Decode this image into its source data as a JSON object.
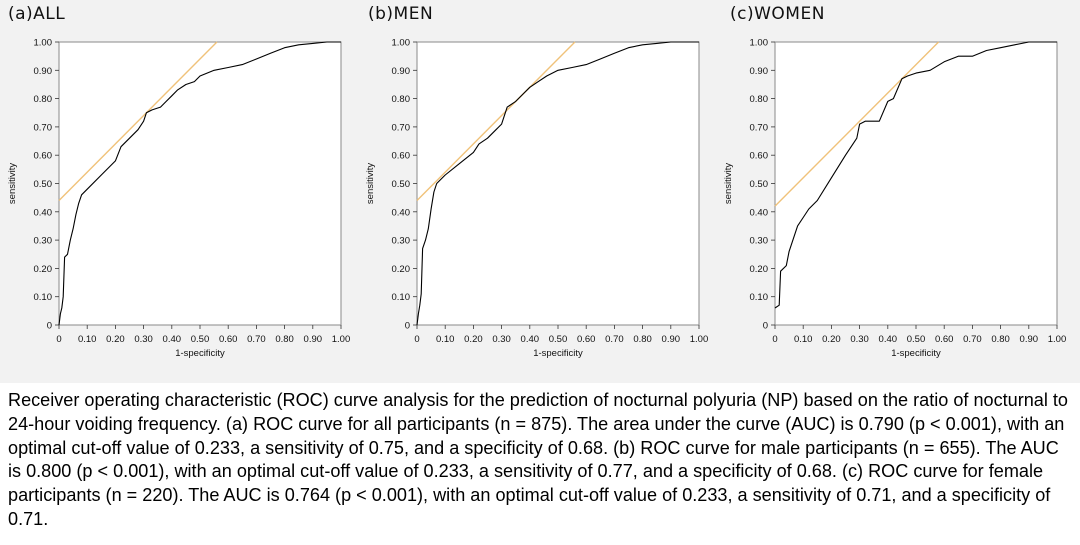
{
  "chart_data": [
    {
      "type": "line",
      "panel_label": "(a)ALL",
      "xlabel": "1-specificity",
      "ylabel": "sensitivity",
      "xlim": [
        0,
        1
      ],
      "ylim": [
        0,
        1
      ],
      "x_ticks": [
        "0",
        "0.10",
        "0.20",
        "0.30",
        "0.40",
        "0.50",
        "0.60",
        "0.70",
        "0.80",
        "0.90",
        "1.00"
      ],
      "y_ticks": [
        "0",
        "0.10",
        "0.20",
        "0.30",
        "0.40",
        "0.50",
        "0.60",
        "0.70",
        "0.80",
        "0.90",
        "1.00"
      ],
      "grid": false,
      "roc_curve": {
        "x": [
          0,
          0.005,
          0.01,
          0.015,
          0.02,
          0.03,
          0.04,
          0.05,
          0.06,
          0.07,
          0.08,
          0.1,
          0.15,
          0.2,
          0.22,
          0.25,
          0.28,
          0.3,
          0.31,
          0.33,
          0.36,
          0.38,
          0.4,
          0.42,
          0.45,
          0.48,
          0.5,
          0.55,
          0.6,
          0.65,
          0.7,
          0.75,
          0.8,
          0.85,
          0.9,
          0.95,
          1.0
        ],
        "y": [
          0,
          0.04,
          0.06,
          0.1,
          0.24,
          0.25,
          0.3,
          0.34,
          0.39,
          0.43,
          0.46,
          0.48,
          0.53,
          0.58,
          0.63,
          0.66,
          0.69,
          0.72,
          0.75,
          0.76,
          0.77,
          0.79,
          0.81,
          0.83,
          0.85,
          0.86,
          0.88,
          0.9,
          0.91,
          0.92,
          0.94,
          0.96,
          0.98,
          0.99,
          0.995,
          1.0,
          1.0
        ]
      },
      "tangent_line": {
        "x": [
          0,
          0.56
        ],
        "y": [
          0.44,
          1.0
        ],
        "color": "#f0c27a"
      },
      "curve_color": "#000000"
    },
    {
      "type": "line",
      "panel_label": "(b)MEN",
      "xlabel": "1-specificity",
      "ylabel": "sensitivity",
      "xlim": [
        0,
        1
      ],
      "ylim": [
        0,
        1
      ],
      "x_ticks": [
        "0",
        "0.10",
        "0.20",
        "0.30",
        "0.40",
        "0.50",
        "0.60",
        "0.70",
        "0.80",
        "0.90",
        "1.00"
      ],
      "y_ticks": [
        "0",
        "0.10",
        "0.20",
        "0.30",
        "0.40",
        "0.50",
        "0.60",
        "0.70",
        "0.80",
        "0.90",
        "1.00"
      ],
      "grid": false,
      "roc_curve": {
        "x": [
          0,
          0.005,
          0.01,
          0.015,
          0.02,
          0.03,
          0.04,
          0.05,
          0.06,
          0.07,
          0.1,
          0.15,
          0.2,
          0.22,
          0.25,
          0.28,
          0.3,
          0.32,
          0.35,
          0.38,
          0.4,
          0.43,
          0.46,
          0.5,
          0.55,
          0.6,
          0.65,
          0.7,
          0.75,
          0.8,
          0.85,
          0.9,
          0.95,
          1.0
        ],
        "y": [
          0,
          0.04,
          0.07,
          0.11,
          0.27,
          0.3,
          0.34,
          0.41,
          0.47,
          0.5,
          0.53,
          0.57,
          0.61,
          0.64,
          0.66,
          0.69,
          0.71,
          0.77,
          0.79,
          0.82,
          0.84,
          0.86,
          0.88,
          0.9,
          0.91,
          0.92,
          0.94,
          0.96,
          0.98,
          0.99,
          0.995,
          1.0,
          1.0,
          1.0
        ]
      },
      "tangent_line": {
        "x": [
          0,
          0.56
        ],
        "y": [
          0.44,
          1.0
        ],
        "color": "#f0c27a"
      },
      "curve_color": "#000000"
    },
    {
      "type": "line",
      "panel_label": "(c)WOMEN",
      "xlabel": "1-specificity",
      "ylabel": "sensitivity",
      "xlim": [
        0,
        1
      ],
      "ylim": [
        0,
        1
      ],
      "x_ticks": [
        "0",
        "0.10",
        "0.20",
        "0.30",
        "0.40",
        "0.50",
        "0.60",
        "0.70",
        "0.80",
        "0.90",
        "1.00"
      ],
      "y_ticks": [
        "0",
        "0.10",
        "0.20",
        "0.30",
        "0.40",
        "0.50",
        "0.60",
        "0.70",
        "0.80",
        "0.90",
        "1.00"
      ],
      "grid": false,
      "roc_curve": {
        "x": [
          0,
          0.015,
          0.02,
          0.04,
          0.05,
          0.08,
          0.1,
          0.12,
          0.15,
          0.2,
          0.25,
          0.29,
          0.3,
          0.32,
          0.35,
          0.37,
          0.4,
          0.42,
          0.45,
          0.47,
          0.5,
          0.55,
          0.6,
          0.65,
          0.7,
          0.75,
          0.8,
          0.85,
          0.9,
          0.95,
          1.0
        ],
        "y": [
          0.06,
          0.07,
          0.19,
          0.21,
          0.26,
          0.35,
          0.38,
          0.41,
          0.44,
          0.52,
          0.6,
          0.66,
          0.71,
          0.72,
          0.72,
          0.72,
          0.79,
          0.8,
          0.87,
          0.88,
          0.89,
          0.9,
          0.93,
          0.95,
          0.95,
          0.97,
          0.98,
          0.99,
          1.0,
          1.0,
          1.0
        ]
      },
      "tangent_line": {
        "x": [
          0,
          0.58
        ],
        "y": [
          0.42,
          1.0
        ],
        "color": "#f0c27a"
      },
      "curve_color": "#000000"
    }
  ],
  "caption": "Receiver operating characteristic (ROC) curve analysis for the prediction of nocturnal polyuria (NP) based on the ratio of nocturnal to 24-hour voiding frequency. (a) ROC curve for all participants (n = 875). The area under the curve (AUC) is 0.790 (p < 0.001), with an optimal cut-off value of 0.233, a sensitivity of 0.75, and a specificity of 0.68. (b) ROC curve for male participants (n = 655). The AUC is 0.800 (p < 0.001), with an optimal cut-off value of 0.233, a sensitivity of 0.77, and a specificity of 0.68. (c) ROC curve for female participants (n = 220). The AUC is 0.764 (p < 0.001), with an optimal cut-off value of 0.233, a sensitivity of 0.71, and a specificity of 0.71."
}
